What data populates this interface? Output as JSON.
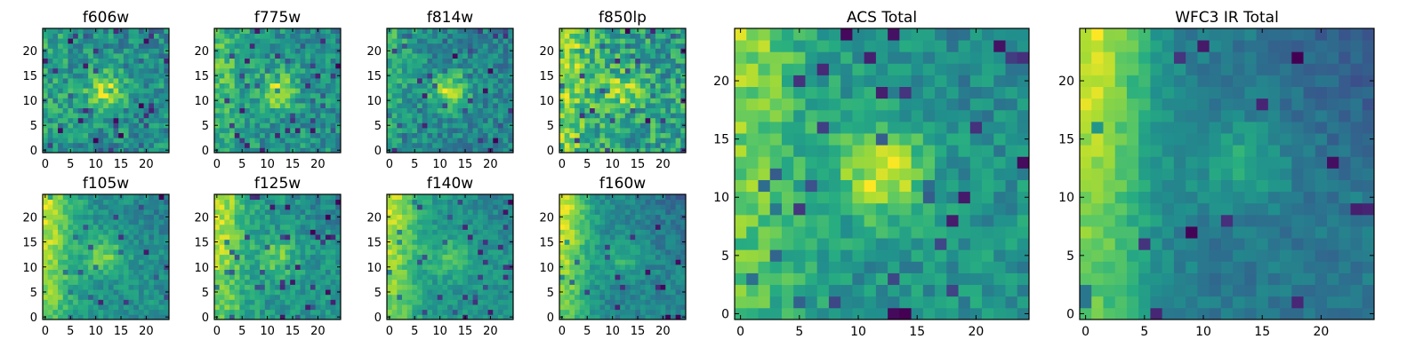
{
  "figure": {
    "description_free": true
  },
  "chart_data": [
    {
      "type": "heatmap",
      "title": "f606w",
      "grid": [
        25,
        25
      ],
      "xticks": [
        "0",
        "5",
        "10",
        "15",
        "20"
      ],
      "yticks": [
        "0",
        "5",
        "10",
        "15",
        "20"
      ],
      "xlim": [
        0,
        25
      ],
      "ylim": [
        0,
        25
      ],
      "colormap": "viridis",
      "pattern": {
        "seed": 11,
        "noise": 0.55,
        "blob": [
          12,
          12,
          0.6
        ],
        "corner": 0.15,
        "dark_frac": 0.06
      }
    },
    {
      "type": "heatmap",
      "title": "f775w",
      "grid": [
        25,
        25
      ],
      "xticks": [
        "0",
        "5",
        "10",
        "15",
        "20"
      ],
      "yticks": [
        "0",
        "5",
        "10",
        "15",
        "20"
      ],
      "xlim": [
        0,
        25
      ],
      "ylim": [
        0,
        25
      ],
      "colormap": "viridis",
      "pattern": {
        "seed": 23,
        "noise": 0.5,
        "blob": [
          12,
          12,
          0.55
        ],
        "corner": 0.35,
        "dark_frac": 0.05
      }
    },
    {
      "type": "heatmap",
      "title": "f814w",
      "grid": [
        25,
        25
      ],
      "xticks": [
        "0",
        "5",
        "10",
        "15",
        "20"
      ],
      "yticks": [
        "0",
        "5",
        "10",
        "15",
        "20"
      ],
      "xlim": [
        0,
        25
      ],
      "ylim": [
        0,
        25
      ],
      "colormap": "viridis",
      "pattern": {
        "seed": 37,
        "noise": 0.5,
        "blob": [
          12,
          12,
          0.7
        ],
        "corner": 0.3,
        "dark_frac": 0.05
      }
    },
    {
      "type": "heatmap",
      "title": "f850lp",
      "grid": [
        25,
        25
      ],
      "xticks": [
        "0",
        "5",
        "10",
        "15",
        "20"
      ],
      "yticks": [
        "0",
        "5",
        "10",
        "15",
        "20"
      ],
      "xlim": [
        0,
        25
      ],
      "ylim": [
        0,
        25
      ],
      "colormap": "viridis",
      "pattern": {
        "seed": 41,
        "noise": 0.55,
        "blob": [
          12,
          12,
          0.35
        ],
        "corner": 0.4,
        "dark_frac": 0.05
      }
    },
    {
      "type": "heatmap",
      "title": "f105w",
      "grid": [
        25,
        25
      ],
      "xticks": [
        "0",
        "5",
        "10",
        "15",
        "20"
      ],
      "yticks": [
        "0",
        "5",
        "10",
        "15",
        "20"
      ],
      "xlim": [
        0,
        25
      ],
      "ylim": [
        0,
        25
      ],
      "colormap": "viridis",
      "pattern": {
        "seed": 53,
        "noise": 0.35,
        "blob": [
          12,
          12,
          0.45
        ],
        "corner": 0.7,
        "dark_frac": 0.04
      }
    },
    {
      "type": "heatmap",
      "title": "f125w",
      "grid": [
        25,
        25
      ],
      "xticks": [
        "0",
        "5",
        "10",
        "15",
        "20"
      ],
      "yticks": [
        "0",
        "5",
        "10",
        "15",
        "20"
      ],
      "xlim": [
        0,
        25
      ],
      "ylim": [
        0,
        25
      ],
      "colormap": "viridis",
      "pattern": {
        "seed": 67,
        "noise": 0.35,
        "blob": [
          12,
          12,
          0.35
        ],
        "corner": 0.6,
        "dark_frac": 0.04
      }
    },
    {
      "type": "heatmap",
      "title": "f140w",
      "grid": [
        25,
        25
      ],
      "xticks": [
        "0",
        "5",
        "10",
        "15",
        "20"
      ],
      "yticks": [
        "0",
        "5",
        "10",
        "15",
        "20"
      ],
      "xlim": [
        0,
        25
      ],
      "ylim": [
        0,
        25
      ],
      "colormap": "viridis",
      "pattern": {
        "seed": 71,
        "noise": 0.3,
        "blob": [
          12,
          12,
          0.3
        ],
        "corner": 0.65,
        "dark_frac": 0.04
      }
    },
    {
      "type": "heatmap",
      "title": "f160w",
      "grid": [
        25,
        25
      ],
      "xticks": [
        "0",
        "5",
        "10",
        "15",
        "20"
      ],
      "yticks": [
        "0",
        "5",
        "10",
        "15",
        "20"
      ],
      "xlim": [
        0,
        25
      ],
      "ylim": [
        0,
        25
      ],
      "colormap": "viridis",
      "pattern": {
        "seed": 83,
        "noise": 0.28,
        "blob": [
          12,
          12,
          0.25
        ],
        "corner": 0.75,
        "dark_frac": 0.03
      }
    },
    {
      "type": "heatmap",
      "title": "ACS Total",
      "grid": [
        25,
        25
      ],
      "xticks": [
        "0",
        "5",
        "10",
        "15",
        "20"
      ],
      "yticks": [
        "0",
        "5",
        "10",
        "15",
        "20"
      ],
      "xlim": [
        0,
        25
      ],
      "ylim": [
        0,
        25
      ],
      "colormap": "viridis",
      "pattern": {
        "seed": 97,
        "noise": 0.35,
        "blob": [
          12,
          12,
          0.6
        ],
        "corner": 0.45,
        "dark_frac": 0.05
      }
    },
    {
      "type": "heatmap",
      "title": "WFC3 IR Total",
      "grid": [
        25,
        25
      ],
      "xticks": [
        "0",
        "5",
        "10",
        "15",
        "20"
      ],
      "yticks": [
        "0",
        "5",
        "10",
        "15",
        "20"
      ],
      "xlim": [
        0,
        25
      ],
      "ylim": [
        0,
        25
      ],
      "colormap": "viridis",
      "pattern": {
        "seed": 101,
        "noise": 0.22,
        "blob": [
          13,
          13,
          0.3
        ],
        "corner": 0.85,
        "dark_frac": 0.02
      }
    }
  ]
}
